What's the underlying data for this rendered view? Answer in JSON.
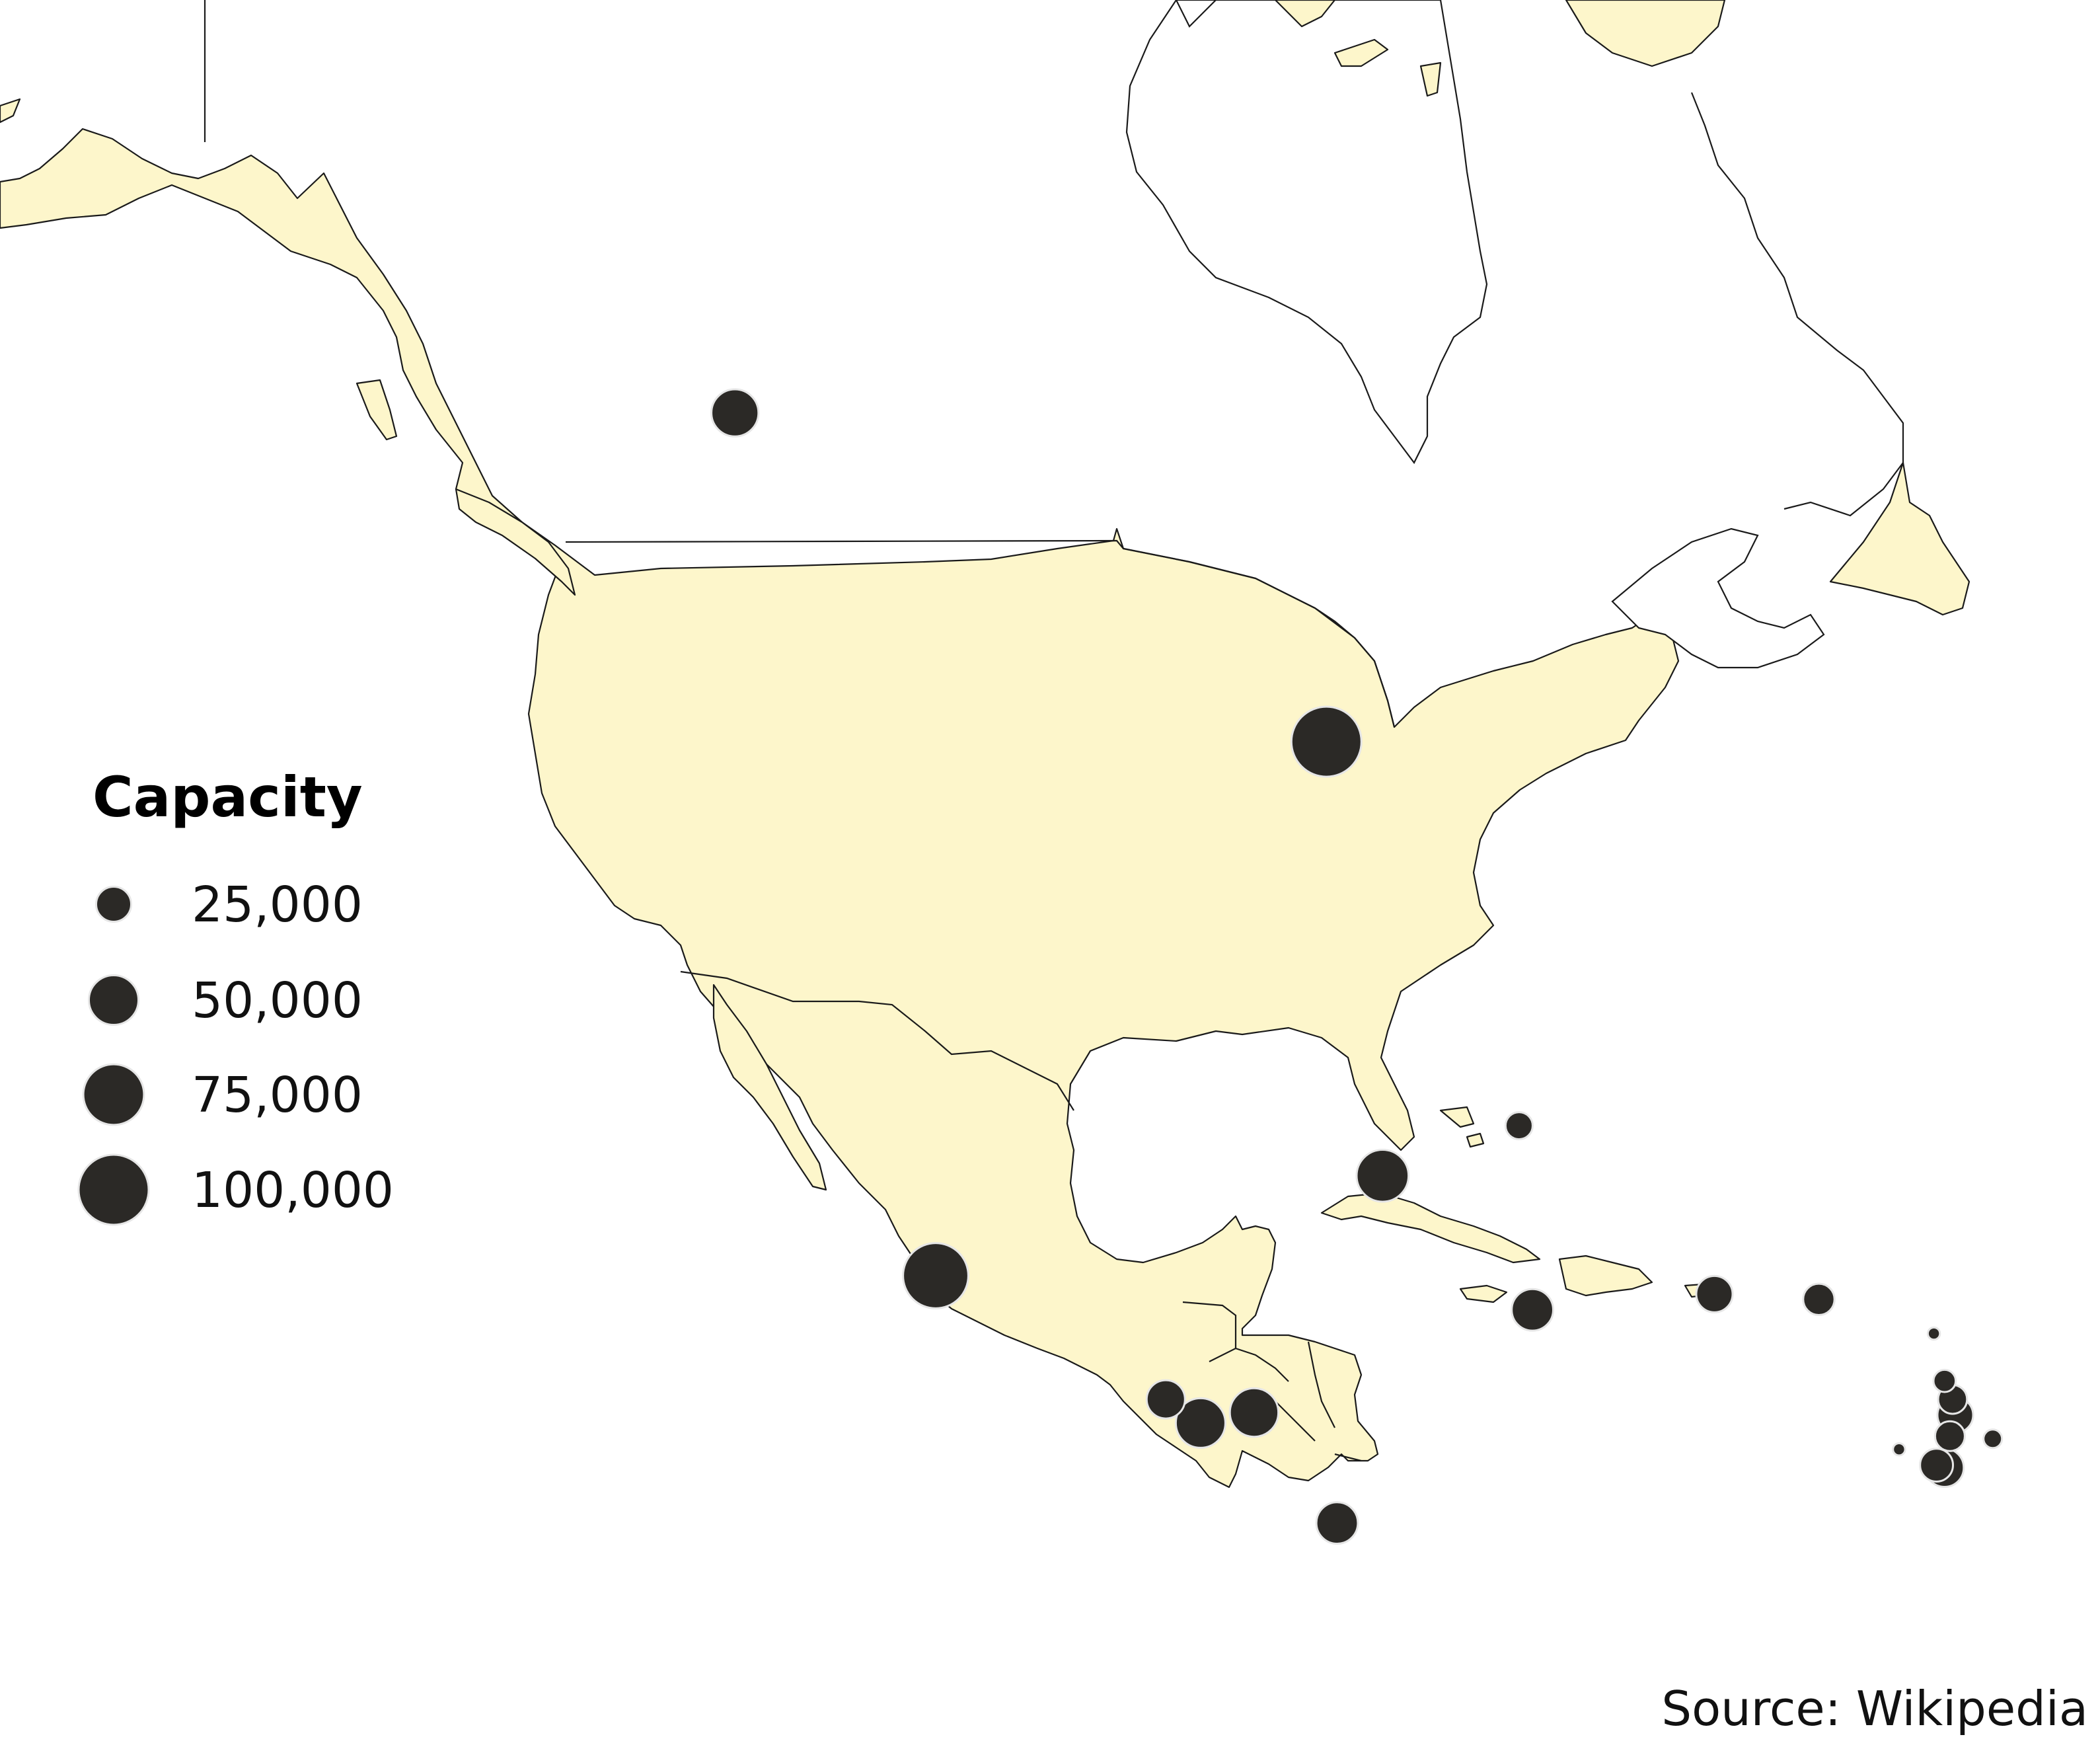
{
  "legend": {
    "title": "Capacity",
    "items": [
      {
        "value": 25000,
        "label": "25,000"
      },
      {
        "value": 50000,
        "label": "50,000"
      },
      {
        "value": 75000,
        "label": "75,000"
      },
      {
        "value": 100000,
        "label": "100,000"
      }
    ]
  },
  "source": "Source: Wikipedia",
  "colors": {
    "land": "#fdf6cb",
    "water": "#ffffff",
    "outline": "#1a1a1a",
    "bubble": "#2b2926",
    "bubble_stroke": "#e6e6e6"
  },
  "chart_data": {
    "type": "proportional-symbol-map",
    "size_variable": "Capacity",
    "region": "North America, Central America and the Caribbean",
    "points": [
      {
        "lon": -106.6,
        "lat": 52.1,
        "capacity": 45000
      },
      {
        "lon": -84.5,
        "lat": 39.6,
        "capacity": 100000
      },
      {
        "lon": -99.1,
        "lat": 19.3,
        "capacity": 87000
      },
      {
        "lon": -82.4,
        "lat": 23.1,
        "capacity": 55000
      },
      {
        "lon": -77.3,
        "lat": 25.0,
        "capacity": 15000
      },
      {
        "lon": -76.8,
        "lat": 18.0,
        "capacity": 35000
      },
      {
        "lon": -70.0,
        "lat": 18.6,
        "capacity": 27000
      },
      {
        "lon": -66.1,
        "lat": 18.4,
        "capacity": 20000
      },
      {
        "lon": -87.2,
        "lat": 14.1,
        "capacity": 48000
      },
      {
        "lon": -90.5,
        "lat": 14.6,
        "capacity": 30000
      },
      {
        "lon": -89.2,
        "lat": 13.7,
        "capacity": 50000
      },
      {
        "lon": -84.1,
        "lat": 9.9,
        "capacity": 35000
      },
      {
        "lon": -61.8,
        "lat": 17.1,
        "capacity": 3000
      },
      {
        "lon": -61.4,
        "lat": 15.3,
        "capacity": 10000
      },
      {
        "lon": -61.1,
        "lat": 14.6,
        "capacity": 17000
      },
      {
        "lon": -61.0,
        "lat": 14.0,
        "capacity": 26000
      },
      {
        "lon": -61.2,
        "lat": 13.2,
        "capacity": 18000
      },
      {
        "lon": -61.7,
        "lat": 12.1,
        "capacity": 22000
      },
      {
        "lon": -59.6,
        "lat": 13.1,
        "capacity": 7000
      },
      {
        "lon": -63.1,
        "lat": 12.7,
        "capacity": 3000
      },
      {
        "lon": -61.4,
        "lat": 12.0,
        "capacity": 30000
      }
    ]
  }
}
